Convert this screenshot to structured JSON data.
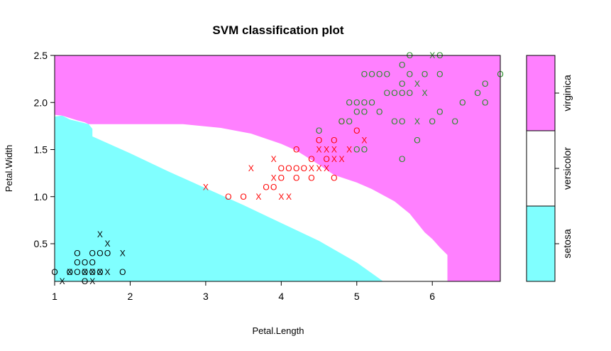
{
  "chart_data": {
    "type": "scatter",
    "title": "SVM classification plot",
    "xlabel": "Petal.Length",
    "ylabel": "Petal.Width",
    "xlim": [
      1,
      6.9
    ],
    "ylim": [
      0.1,
      2.5
    ],
    "xticks": [
      "1",
      "2",
      "3",
      "4",
      "5",
      "6"
    ],
    "yticks": [
      "0.5",
      "1.0",
      "1.5",
      "2.0",
      "2.5"
    ],
    "grid": false,
    "colors": {
      "setosa": "#80ffff",
      "versicolor": "#ffffff",
      "virginica": "#ff80ff",
      "points_setosa": "#000000",
      "points_versicolor": "#ff0000",
      "points_virginica": "#228b22"
    },
    "legend": {
      "position": "right",
      "labels": [
        "setosa",
        "versicolor",
        "virginica"
      ]
    },
    "regions": {
      "setosa_upper_boundary": [
        [
          1.0,
          1.85
        ],
        [
          1.1,
          1.86
        ],
        [
          1.2,
          1.82
        ],
        [
          1.3,
          1.8
        ],
        [
          1.45,
          1.77
        ],
        [
          1.5,
          1.72
        ],
        [
          1.5,
          1.64
        ],
        [
          2.0,
          1.46
        ],
        [
          2.5,
          1.27
        ],
        [
          3.0,
          1.09
        ],
        [
          3.5,
          0.91
        ],
        [
          4.0,
          0.72
        ],
        [
          4.5,
          0.53
        ],
        [
          5.0,
          0.3
        ],
        [
          5.35,
          0.1
        ]
      ],
      "virginica_lower_boundary": [
        [
          1.0,
          1.87
        ],
        [
          1.1,
          1.86
        ],
        [
          1.3,
          1.81
        ],
        [
          1.4,
          1.79
        ],
        [
          1.45,
          1.77
        ],
        [
          2.3,
          1.77
        ],
        [
          2.7,
          1.77
        ],
        [
          3.2,
          1.73
        ],
        [
          3.6,
          1.67
        ],
        [
          4.0,
          1.56
        ],
        [
          4.2,
          1.49
        ],
        [
          4.5,
          1.34
        ],
        [
          4.7,
          1.23
        ],
        [
          5.0,
          1.15
        ],
        [
          5.2,
          1.08
        ],
        [
          5.5,
          0.95
        ],
        [
          5.7,
          0.82
        ],
        [
          5.9,
          0.62
        ],
        [
          6.0,
          0.55
        ],
        [
          6.1,
          0.46
        ],
        [
          6.2,
          0.38
        ],
        [
          6.2,
          0.1
        ]
      ]
    },
    "series": [
      {
        "name": "setosa",
        "points": [
          [
            1.0,
            0.2,
            "O"
          ],
          [
            1.1,
            0.1,
            "X"
          ],
          [
            1.2,
            0.2,
            "O"
          ],
          [
            1.3,
            0.2,
            "O"
          ],
          [
            1.3,
            0.3,
            "O"
          ],
          [
            1.3,
            0.4,
            "O"
          ],
          [
            1.4,
            0.1,
            "O"
          ],
          [
            1.4,
            0.2,
            "X"
          ],
          [
            1.4,
            0.3,
            "O"
          ],
          [
            1.4,
            0.2,
            "O"
          ],
          [
            1.5,
            0.1,
            "X"
          ],
          [
            1.5,
            0.2,
            "X"
          ],
          [
            1.5,
            0.3,
            "O"
          ],
          [
            1.5,
            0.4,
            "O"
          ],
          [
            1.5,
            0.2,
            "O"
          ],
          [
            1.6,
            0.2,
            "O"
          ],
          [
            1.6,
            0.4,
            "O"
          ],
          [
            1.6,
            0.6,
            "X"
          ],
          [
            1.7,
            0.2,
            "X"
          ],
          [
            1.7,
            0.4,
            "O"
          ],
          [
            1.7,
            0.5,
            "X"
          ],
          [
            1.9,
            0.2,
            "O"
          ],
          [
            1.9,
            0.4,
            "X"
          ],
          [
            1.2,
            0.2,
            "X"
          ],
          [
            1.6,
            0.2,
            "X"
          ]
        ]
      },
      {
        "name": "versicolor",
        "points": [
          [
            3.0,
            1.1,
            "X"
          ],
          [
            3.3,
            1.0,
            "O"
          ],
          [
            3.5,
            1.0,
            "O"
          ],
          [
            3.6,
            1.3,
            "X"
          ],
          [
            3.7,
            1.0,
            "X"
          ],
          [
            3.8,
            1.1,
            "O"
          ],
          [
            3.9,
            1.1,
            "O"
          ],
          [
            3.9,
            1.2,
            "X"
          ],
          [
            3.9,
            1.4,
            "X"
          ],
          [
            4.0,
            1.0,
            "X"
          ],
          [
            4.0,
            1.2,
            "O"
          ],
          [
            4.0,
            1.3,
            "O"
          ],
          [
            4.1,
            1.0,
            "X"
          ],
          [
            4.1,
            1.3,
            "O"
          ],
          [
            4.2,
            1.2,
            "O"
          ],
          [
            4.2,
            1.3,
            "O"
          ],
          [
            4.2,
            1.5,
            "O"
          ],
          [
            4.3,
            1.3,
            "O"
          ],
          [
            4.4,
            1.2,
            "O"
          ],
          [
            4.4,
            1.3,
            "X"
          ],
          [
            4.4,
            1.4,
            "O"
          ],
          [
            4.5,
            1.3,
            "X"
          ],
          [
            4.5,
            1.5,
            "X"
          ],
          [
            4.5,
            1.6,
            "O"
          ],
          [
            4.6,
            1.3,
            "X"
          ],
          [
            4.6,
            1.4,
            "O"
          ],
          [
            4.6,
            1.5,
            "X"
          ],
          [
            4.7,
            1.2,
            "O"
          ],
          [
            4.7,
            1.4,
            "X"
          ],
          [
            4.7,
            1.5,
            "X"
          ],
          [
            4.7,
            1.6,
            "O"
          ],
          [
            4.8,
            1.4,
            "X"
          ],
          [
            4.8,
            1.8,
            "O"
          ],
          [
            4.9,
            1.5,
            "X"
          ],
          [
            5.0,
            1.7,
            "O"
          ],
          [
            5.1,
            1.6,
            "X"
          ]
        ]
      },
      {
        "name": "virginica",
        "points": [
          [
            4.5,
            1.7,
            "O"
          ],
          [
            4.8,
            1.8,
            "O"
          ],
          [
            4.9,
            1.8,
            "O"
          ],
          [
            4.9,
            2.0,
            "O"
          ],
          [
            5.0,
            1.5,
            "O"
          ],
          [
            5.0,
            1.9,
            "O"
          ],
          [
            5.0,
            2.0,
            "O"
          ],
          [
            5.1,
            1.5,
            "O"
          ],
          [
            5.1,
            1.9,
            "O"
          ],
          [
            5.1,
            2.0,
            "O"
          ],
          [
            5.1,
            2.3,
            "O"
          ],
          [
            5.2,
            2.0,
            "O"
          ],
          [
            5.2,
            2.3,
            "O"
          ],
          [
            5.3,
            1.9,
            "O"
          ],
          [
            5.3,
            2.3,
            "O"
          ],
          [
            5.4,
            2.1,
            "O"
          ],
          [
            5.4,
            2.3,
            "O"
          ],
          [
            5.5,
            1.8,
            "O"
          ],
          [
            5.5,
            2.1,
            "O"
          ],
          [
            5.6,
            1.4,
            "O"
          ],
          [
            5.6,
            1.8,
            "O"
          ],
          [
            5.6,
            2.1,
            "O"
          ],
          [
            5.6,
            2.2,
            "O"
          ],
          [
            5.6,
            2.4,
            "O"
          ],
          [
            5.7,
            2.1,
            "O"
          ],
          [
            5.7,
            2.3,
            "O"
          ],
          [
            5.7,
            2.5,
            "O"
          ],
          [
            5.8,
            1.6,
            "O"
          ],
          [
            5.8,
            2.2,
            "X"
          ],
          [
            5.8,
            1.8,
            "X"
          ],
          [
            5.9,
            2.1,
            "X"
          ],
          [
            5.9,
            2.3,
            "O"
          ],
          [
            6.0,
            1.8,
            "O"
          ],
          [
            6.0,
            2.5,
            "X"
          ],
          [
            6.1,
            1.9,
            "O"
          ],
          [
            6.1,
            2.3,
            "O"
          ],
          [
            6.1,
            2.5,
            "O"
          ],
          [
            6.3,
            1.8,
            "O"
          ],
          [
            6.4,
            2.0,
            "O"
          ],
          [
            6.6,
            2.1,
            "O"
          ],
          [
            6.7,
            2.0,
            "O"
          ],
          [
            6.7,
            2.2,
            "O"
          ],
          [
            6.9,
            2.3,
            "O"
          ]
        ]
      }
    ]
  }
}
